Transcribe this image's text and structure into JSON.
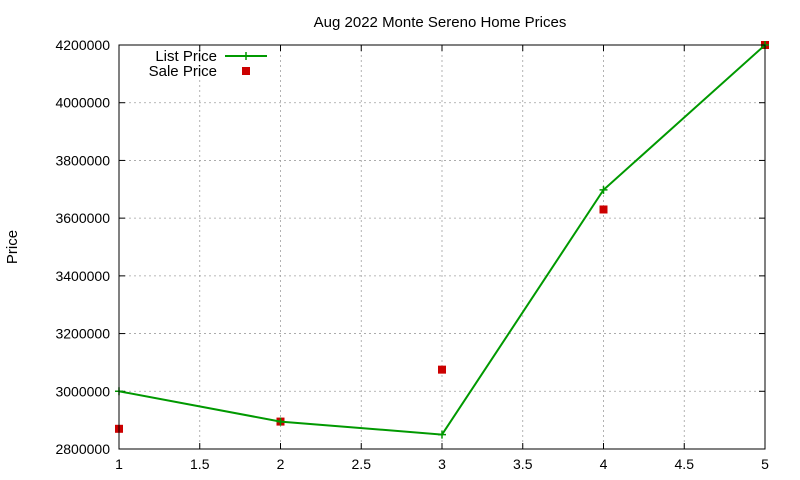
{
  "chart_data": {
    "type": "line",
    "title": "Aug 2022 Monte Sereno Home Prices",
    "xlabel": "",
    "ylabel": "Price",
    "xlim": [
      1,
      5
    ],
    "ylim": [
      2800000,
      4200000
    ],
    "x_ticks": [
      1,
      1.5,
      2,
      2.5,
      3,
      3.5,
      4,
      4.5,
      5
    ],
    "y_ticks": [
      2800000,
      3000000,
      3200000,
      3400000,
      3600000,
      3800000,
      4000000,
      4200000
    ],
    "grid": true,
    "legend_position": "top-left",
    "series": [
      {
        "name": "List Price",
        "style": "line-with-plus-markers",
        "color": "#009900",
        "x": [
          1,
          2,
          3,
          4,
          5
        ],
        "y": [
          3000000,
          2895000,
          2850000,
          3698000,
          4200000
        ]
      },
      {
        "name": "Sale Price",
        "style": "square-markers",
        "color": "#cc0000",
        "x": [
          1,
          2,
          3,
          4,
          5
        ],
        "y": [
          2870000,
          2895000,
          3075000,
          3630000,
          4200000
        ]
      }
    ]
  }
}
